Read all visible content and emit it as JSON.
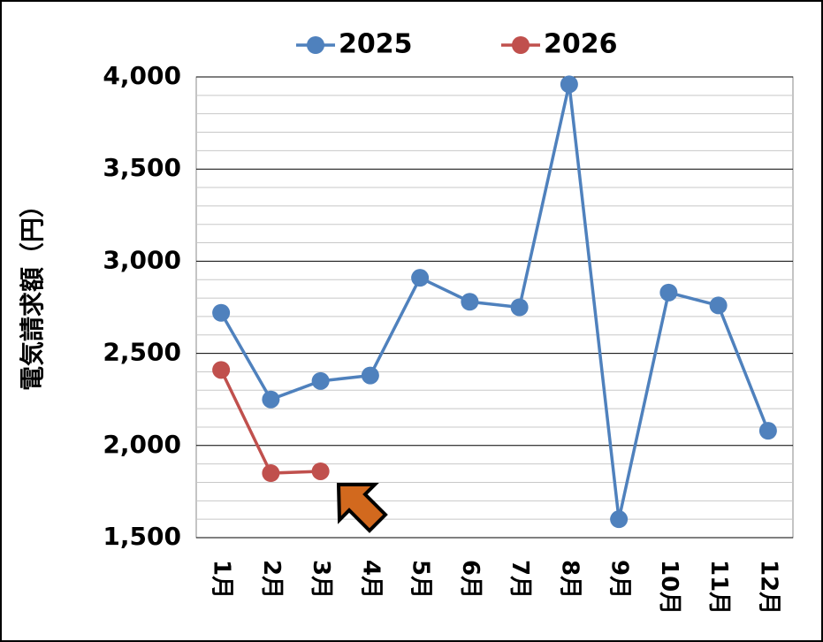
{
  "chart_data": {
    "type": "line",
    "y_label": "電気請求額（円）",
    "categories": [
      "1月",
      "2月",
      "3月",
      "4月",
      "5月",
      "6月",
      "7月",
      "8月",
      "9月",
      "10月",
      "11月",
      "12月"
    ],
    "series": [
      {
        "name": "2025",
        "color": "#4f81bd",
        "values": [
          2720,
          2250,
          2350,
          2380,
          2910,
          2780,
          2750,
          3960,
          1600,
          2830,
          2760,
          2080
        ]
      },
      {
        "name": "2026",
        "color": "#c0504d",
        "values": [
          2410,
          1850,
          1860,
          null,
          null,
          null,
          null,
          null,
          null,
          null,
          null,
          null
        ]
      }
    ],
    "ylim": [
      1500,
      4000
    ],
    "yticks": [
      {
        "value": 1500,
        "label": "1,500"
      },
      {
        "value": 2000,
        "label": "2,000"
      },
      {
        "value": 2500,
        "label": "2,500"
      },
      {
        "value": 3000,
        "label": "3,000"
      },
      {
        "value": 3500,
        "label": "3,500"
      },
      {
        "value": 4000,
        "label": "4,000"
      }
    ],
    "grid": true,
    "legend": "top"
  }
}
